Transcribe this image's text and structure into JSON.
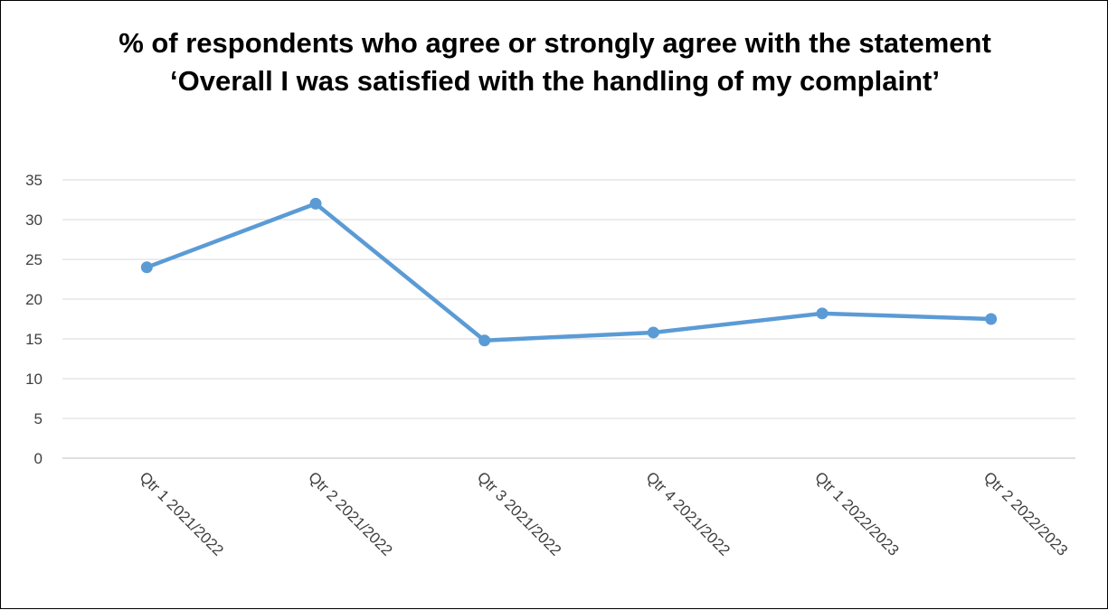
{
  "chart_data": {
    "type": "line",
    "title": "% of respondents who agree or strongly agree with the statement ‘Overall I was satisfied with the handling of my complaint’",
    "xlabel": "",
    "ylabel": "",
    "categories": [
      "Qtr 1 2021/2022",
      "Qtr 2 2021/2022",
      "Qtr 3 2021/2022",
      "Qtr 4 2021/2022",
      "Qtr 1 2022/2023",
      "Qtr 2 2022/2023"
    ],
    "series": [
      {
        "values": [
          24,
          32,
          14.8,
          15.8,
          18.2,
          17.5
        ],
        "color": "#5B9BD5"
      }
    ],
    "ylim": [
      0,
      35
    ],
    "yticks": [
      0,
      5,
      10,
      15,
      20,
      25,
      30,
      35
    ],
    "grid": true,
    "legend": "none",
    "markers": true
  }
}
